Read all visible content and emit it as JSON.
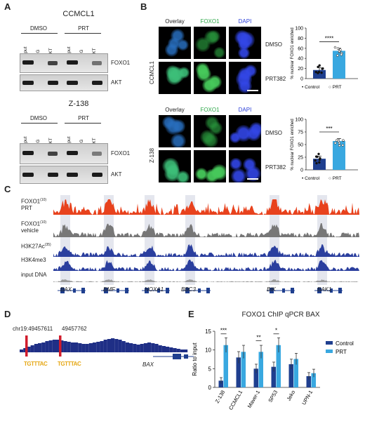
{
  "panels": {
    "a": "A",
    "b": "B",
    "c": "C",
    "d": "D",
    "e": "E"
  },
  "panel_a": {
    "blocks": [
      {
        "cell_line": "CCMCL1",
        "dmso": "DMSO",
        "prt": "PRT",
        "lanes": [
          "Input",
          "IgG",
          "AKT",
          "Input",
          "IgG",
          "AKT"
        ],
        "bands": [
          "FOXO1",
          "AKT"
        ]
      },
      {
        "cell_line": "Z-138",
        "dmso": "DMSO",
        "prt": "PRT",
        "lanes": [
          "Input",
          "IgG",
          "AKT",
          "Input",
          "IgG",
          "AKT"
        ],
        "bands": [
          "FOXO1",
          "AKT"
        ]
      }
    ]
  },
  "panel_b": {
    "headers": {
      "overlay": "Overlay",
      "foxo1": "FOXO1",
      "dapi": "DAPI"
    },
    "colors": {
      "foxo1": "#2fa84a",
      "dapi": "#2b3fd8",
      "control_bar": "#1f3f8f",
      "prt_bar": "#39a8e0"
    },
    "blocks": [
      {
        "cell_line": "CCMCL1",
        "rows": [
          "DMSO",
          "PRT382"
        ]
      },
      {
        "cell_line": "Z-138",
        "rows": [
          "DMSO",
          "PRT382"
        ]
      }
    ],
    "charts": [
      {
        "type": "bar",
        "ylabel": "% nuclear FOXO1 enriched",
        "yticks": [
          "0",
          "20",
          "40",
          "60",
          "80",
          "100"
        ],
        "ylim": [
          0,
          100
        ],
        "categories": [
          "Control",
          "PRT"
        ],
        "values": [
          17,
          55
        ],
        "significance": "****",
        "legend": [
          "• Control",
          "○ PRT"
        ]
      },
      {
        "type": "bar",
        "ylabel": "% nuclear FOXO1 enriched",
        "yticks": [
          "0",
          "25",
          "50",
          "75",
          "100"
        ],
        "ylim": [
          0,
          100
        ],
        "categories": [
          "Control",
          "PRT"
        ],
        "values": [
          22,
          57
        ],
        "significance": "***",
        "legend": [
          "• Control",
          "○ PRT"
        ]
      }
    ]
  },
  "panel_c": {
    "tracks": [
      {
        "label": "FOXO1",
        "sup": "(10)",
        "label2": "PRT",
        "color": "#e8421d"
      },
      {
        "label": "FOXO1",
        "sup": "(10)",
        "label2": "vehicle",
        "color": "#777777"
      },
      {
        "label": "H3K27Ac",
        "sup": "(35)",
        "label2": "",
        "color": "#2b3f9e"
      },
      {
        "label": "H3K4me3",
        "sup": "",
        "label2": "",
        "color": "#2b3f9e"
      },
      {
        "label": "input DNA",
        "sup": "",
        "label2": "",
        "color": "#9a9a9a"
      }
    ],
    "genes": [
      "BAX",
      "BMF",
      "NOXA1",
      "BBC3",
      "BIK",
      "BAK1"
    ]
  },
  "panel_d": {
    "coord1": "chr19:49457611",
    "coord2": "49457762",
    "gene": "BAX",
    "motif": "TGTTTAC"
  },
  "panel_e": {
    "chart_data": {
      "type": "bar",
      "title": "FOXO1 ChIP qPCR BAX",
      "ylabel": "Ratio to input",
      "ylim": [
        0,
        15
      ],
      "yticks": [
        "0",
        "5",
        "10",
        "15"
      ],
      "categories": [
        "Z-138",
        "CCMCL1",
        "Maver-1",
        "SP53",
        "Jeko",
        "UPN-1"
      ],
      "series": [
        {
          "name": "Control",
          "color": "#1f3f8f",
          "values": [
            1.8,
            8.0,
            5.0,
            5.5,
            6.2,
            3.0
          ]
        },
        {
          "name": "PRT",
          "color": "#39a8e0",
          "values": [
            11.3,
            9.5,
            9.5,
            11.3,
            7.6,
            3.8
          ]
        }
      ],
      "significance": [
        "***",
        "",
        "**",
        "*",
        "",
        ""
      ]
    }
  }
}
